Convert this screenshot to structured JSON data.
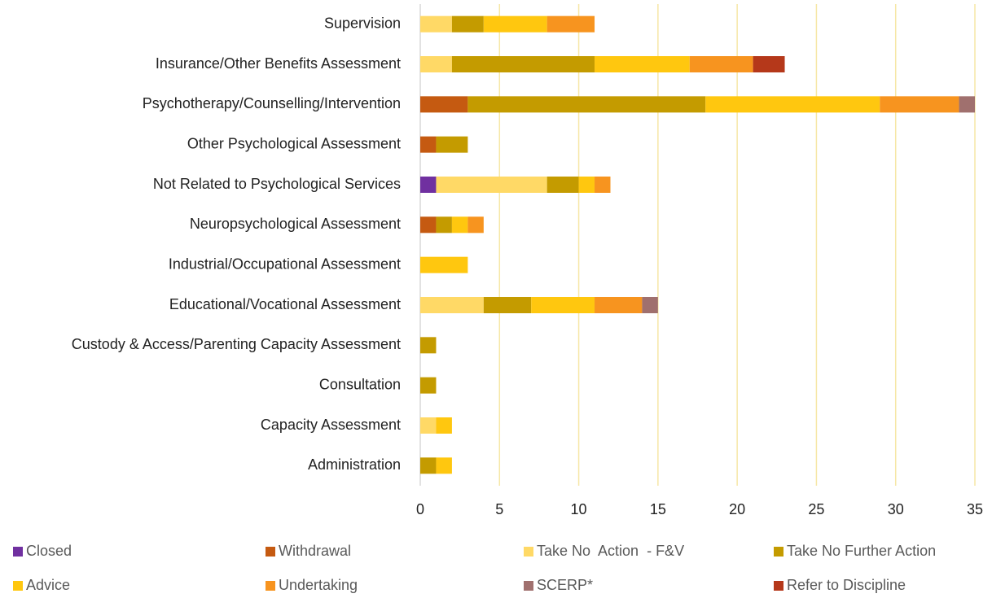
{
  "chart_data": {
    "type": "stacked-bar-horizontal",
    "categories": [
      "Supervision",
      "Insurance/Other Benefits Assessment",
      "Psychotherapy/Counselling/Intervention",
      "Other Psychological Assessment",
      "Not Related to Psychological Services",
      "Neuropsychological Assessment",
      "Industrial/Occupational Assessment",
      "Educational/Vocational Assessment",
      "Custody & Access/Parenting Capacity Assessment",
      "Consultation",
      "Capacity Assessment",
      "Administration"
    ],
    "series": [
      {
        "name": "Closed",
        "color": "#7030a0",
        "values": [
          0,
          0,
          0,
          0,
          1,
          0,
          0,
          0,
          0,
          0,
          0,
          0
        ]
      },
      {
        "name": "Withdrawal",
        "color": "#c55a11",
        "values": [
          0,
          0,
          3,
          1,
          0,
          1,
          0,
          0,
          0,
          0,
          0,
          0
        ]
      },
      {
        "name": "Take No  Action  - F&V",
        "color": "#ffd966",
        "values": [
          2,
          2,
          0,
          0,
          7,
          0,
          0,
          4,
          0,
          0,
          1,
          0
        ]
      },
      {
        "name": "Take No Further Action",
        "color": "#c49b00",
        "values": [
          2,
          9,
          15,
          2,
          2,
          1,
          0,
          3,
          1,
          1,
          0,
          1
        ]
      },
      {
        "name": "Advice",
        "color": "#ffc70f",
        "values": [
          4,
          6,
          11,
          0,
          1,
          1,
          3,
          4,
          0,
          0,
          1,
          1
        ]
      },
      {
        "name": "Undertaking",
        "color": "#f7941f",
        "values": [
          3,
          4,
          5,
          0,
          1,
          1,
          0,
          3,
          0,
          0,
          0,
          0
        ]
      },
      {
        "name": "SCERP*",
        "color": "#a0706e",
        "values": [
          0,
          0,
          1,
          0,
          0,
          0,
          0,
          1,
          0,
          0,
          0,
          0
        ]
      },
      {
        "name": "Refer to Discipline",
        "color": "#b5381a",
        "values": [
          0,
          2,
          0,
          0,
          0,
          0,
          0,
          0,
          0,
          0,
          0,
          0
        ]
      }
    ],
    "xlim": [
      0,
      35
    ],
    "xticks": [
      0,
      5,
      10,
      15,
      20,
      25,
      30,
      35
    ],
    "grid": true
  }
}
